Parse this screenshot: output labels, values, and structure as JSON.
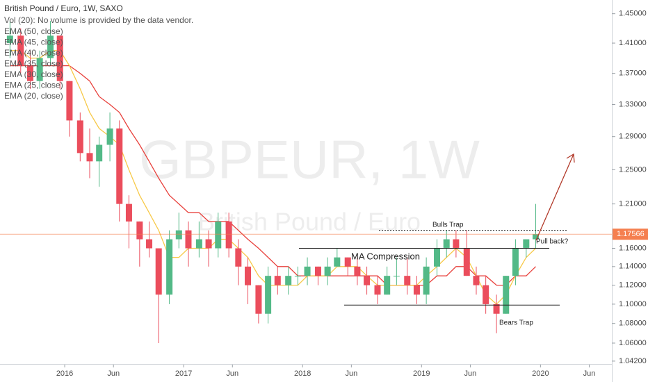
{
  "chart_data": {
    "type": "candlestick",
    "title": "British Pound / Euro, 1W, SAXO",
    "subtitle": "Vol (20): No volume is provided by the data vendor.",
    "watermark": [
      "GBPEUR, 1W",
      "British Pound / Euro"
    ],
    "log_scale": true,
    "up_color": "#53b987",
    "down_color": "#eb4d5c",
    "x": [
      2015.54,
      2015.63,
      2015.71,
      2015.79,
      2015.88,
      2015.96,
      2016.04,
      2016.13,
      2016.21,
      2016.29,
      2016.38,
      2016.46,
      2016.54,
      2016.63,
      2016.71,
      2016.79,
      2016.88,
      2016.96,
      2017.04,
      2017.13,
      2017.21,
      2017.29,
      2017.38,
      2017.46,
      2017.54,
      2017.63,
      2017.71,
      2017.79,
      2017.88,
      2017.96,
      2018.04,
      2018.13,
      2018.21,
      2018.29,
      2018.38,
      2018.46,
      2018.54,
      2018.63,
      2018.71,
      2018.79,
      2018.88,
      2018.96,
      2019.04,
      2019.13,
      2019.21,
      2019.29,
      2019.38,
      2019.46,
      2019.54,
      2019.63,
      2019.71,
      2019.79,
      2019.88,
      2019.96
    ],
    "open": [
      1.41,
      1.42,
      1.38,
      1.36,
      1.39,
      1.42,
      1.36,
      1.31,
      1.27,
      1.26,
      1.28,
      1.3,
      1.21,
      1.19,
      1.17,
      1.16,
      1.11,
      1.17,
      1.18,
      1.16,
      1.17,
      1.16,
      1.19,
      1.16,
      1.14,
      1.12,
      1.09,
      1.13,
      1.12,
      1.13,
      1.13,
      1.14,
      1.13,
      1.14,
      1.15,
      1.14,
      1.13,
      1.12,
      1.11,
      1.13,
      1.13,
      1.12,
      1.11,
      1.14,
      1.16,
      1.17,
      1.16,
      1.13,
      1.12,
      1.1,
      1.09,
      1.13,
      1.16,
      1.17
    ],
    "high": [
      1.44,
      1.43,
      1.4,
      1.4,
      1.44,
      1.42,
      1.36,
      1.32,
      1.3,
      1.29,
      1.32,
      1.31,
      1.22,
      1.19,
      1.19,
      1.16,
      1.18,
      1.2,
      1.19,
      1.19,
      1.18,
      1.2,
      1.2,
      1.17,
      1.15,
      1.12,
      1.14,
      1.14,
      1.14,
      1.14,
      1.15,
      1.14,
      1.15,
      1.16,
      1.15,
      1.15,
      1.14,
      1.13,
      1.14,
      1.15,
      1.15,
      1.13,
      1.15,
      1.17,
      1.18,
      1.18,
      1.18,
      1.14,
      1.13,
      1.11,
      1.13,
      1.17,
      1.17,
      1.21
    ],
    "low": [
      1.39,
      1.37,
      1.35,
      1.35,
      1.38,
      1.35,
      1.29,
      1.26,
      1.24,
      1.23,
      1.26,
      1.19,
      1.16,
      1.14,
      1.15,
      1.06,
      1.1,
      1.16,
      1.14,
      1.15,
      1.14,
      1.15,
      1.15,
      1.12,
      1.1,
      1.08,
      1.08,
      1.11,
      1.11,
      1.12,
      1.12,
      1.12,
      1.12,
      1.14,
      1.13,
      1.12,
      1.11,
      1.1,
      1.11,
      1.12,
      1.11,
      1.1,
      1.1,
      1.13,
      1.15,
      1.15,
      1.13,
      1.11,
      1.09,
      1.07,
      1.09,
      1.12,
      1.15,
      1.16
    ],
    "close": [
      1.42,
      1.38,
      1.36,
      1.39,
      1.42,
      1.36,
      1.31,
      1.27,
      1.26,
      1.28,
      1.3,
      1.21,
      1.19,
      1.17,
      1.16,
      1.11,
      1.17,
      1.18,
      1.16,
      1.17,
      1.16,
      1.19,
      1.16,
      1.14,
      1.12,
      1.09,
      1.13,
      1.12,
      1.13,
      1.13,
      1.14,
      1.13,
      1.14,
      1.15,
      1.14,
      1.13,
      1.12,
      1.11,
      1.13,
      1.13,
      1.12,
      1.11,
      1.14,
      1.16,
      1.17,
      1.16,
      1.13,
      1.12,
      1.1,
      1.09,
      1.13,
      1.16,
      1.17,
      1.17566
    ],
    "series": [
      {
        "name": "EMA (50, close)",
        "color": "#e8413c",
        "values": [
          1.38,
          1.38,
          1.38,
          1.38,
          1.38,
          1.38,
          1.38,
          1.37,
          1.36,
          1.34,
          1.33,
          1.32,
          1.3,
          1.28,
          1.26,
          1.24,
          1.22,
          1.21,
          1.2,
          1.2,
          1.19,
          1.19,
          1.19,
          1.18,
          1.17,
          1.16,
          1.15,
          1.14,
          1.14,
          1.13,
          1.13,
          1.13,
          1.13,
          1.13,
          1.13,
          1.13,
          1.13,
          1.13,
          1.12,
          1.12,
          1.12,
          1.12,
          1.12,
          1.13,
          1.13,
          1.14,
          1.14,
          1.13,
          1.13,
          1.12,
          1.12,
          1.13,
          1.13,
          1.14
        ]
      },
      {
        "name": "EMA (45, close)",
        "color": "#ec5a3c"
      },
      {
        "name": "EMA (40, close)",
        "color": "#ef6f3f"
      },
      {
        "name": "EMA (35, close)",
        "color": "#f28a44"
      },
      {
        "name": "EMA (30, close)",
        "color": "#f5a34b"
      },
      {
        "name": "EMA (25, close)",
        "color": "#f8bd53"
      },
      {
        "name": "EMA (20, close)",
        "color": "#f7c948",
        "values": [
          1.4,
          1.4,
          1.39,
          1.39,
          1.4,
          1.4,
          1.38,
          1.35,
          1.32,
          1.3,
          1.29,
          1.28,
          1.25,
          1.22,
          1.2,
          1.18,
          1.15,
          1.15,
          1.16,
          1.16,
          1.16,
          1.17,
          1.17,
          1.16,
          1.15,
          1.13,
          1.12,
          1.12,
          1.12,
          1.12,
          1.13,
          1.13,
          1.13,
          1.14,
          1.14,
          1.14,
          1.13,
          1.12,
          1.12,
          1.12,
          1.12,
          1.12,
          1.13,
          1.14,
          1.15,
          1.16,
          1.15,
          1.13,
          1.11,
          1.1,
          1.11,
          1.13,
          1.15,
          1.16
        ]
      }
    ],
    "last_price": 1.17566,
    "last_price_color": "#f57f4f",
    "levels": [
      1.16,
      1.099,
      1.18
    ],
    "annotations": [
      "MA Compression",
      "Bulls Trap",
      "Pull back?",
      "Bears Trap"
    ],
    "xlim": [
      2015.456,
      2020.6
    ],
    "xticks": [
      2016,
      {
        "value": 2016.41,
        "label": "Jun"
      },
      2017,
      {
        "value": 2017.41,
        "label": "Jun"
      },
      2018,
      {
        "value": 2018.41,
        "label": "Jun"
      },
      2019,
      {
        "value": 2019.41,
        "label": "Jun"
      },
      2020,
      {
        "value": 2020.41,
        "label": "Jun"
      }
    ],
    "ylim": [
      1.0385,
      1.469
    ],
    "yticks": [
      {
        "value": 1.45,
        "label": "1.45000"
      },
      {
        "value": 1.41,
        "label": "1.41000"
      },
      {
        "value": 1.37,
        "label": "1.37000"
      },
      {
        "value": 1.33,
        "label": "1.33000"
      },
      {
        "value": 1.29,
        "label": "1.29000"
      },
      {
        "value": 1.25,
        "label": "1.25000"
      },
      {
        "value": 1.21,
        "label": "1.21000"
      },
      {
        "value": 1.16,
        "label": "1.16000"
      },
      {
        "value": 1.14,
        "label": "1.14000"
      },
      {
        "value": 1.12,
        "label": "1.12000"
      },
      {
        "value": 1.1,
        "label": "1.10000"
      },
      {
        "value": 1.08,
        "label": "1.08000"
      },
      {
        "value": 1.06,
        "label": "1.06000"
      },
      {
        "value": 1.042,
        "label": "1.04200"
      }
    ]
  }
}
